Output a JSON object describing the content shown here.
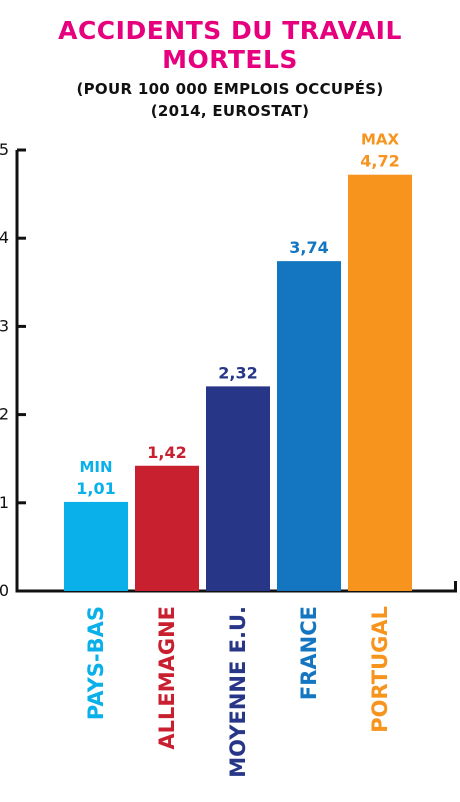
{
  "chart_data": {
    "type": "bar",
    "title": [
      "ACCIDENTS DU TRAVAIL",
      "MORTELS"
    ],
    "subtitle": [
      "(POUR 100 000 EMPLOIS OCCUPÉS)",
      "(2014, EUROSTAT)"
    ],
    "categories": [
      "PAYS-BAS",
      "ALLEMAGNE",
      "MOYENNE E.U.",
      "FRANCE",
      "PORTUGAL"
    ],
    "values": [
      1.01,
      1.42,
      2.32,
      3.74,
      4.72
    ],
    "value_labels": [
      "1,01",
      "1,42",
      "2,32",
      "3,74",
      "4,72"
    ],
    "annotations": [
      "MIN",
      "",
      "",
      "",
      "MAX"
    ],
    "colors": [
      "#0ab0ea",
      "#c8202f",
      "#283688",
      "#1476c1",
      "#f7941d"
    ],
    "title_color": "#e6007e",
    "ylim": [
      0,
      5
    ],
    "yticks": [
      "0",
      "1",
      "2",
      "3",
      "4",
      "5"
    ]
  }
}
